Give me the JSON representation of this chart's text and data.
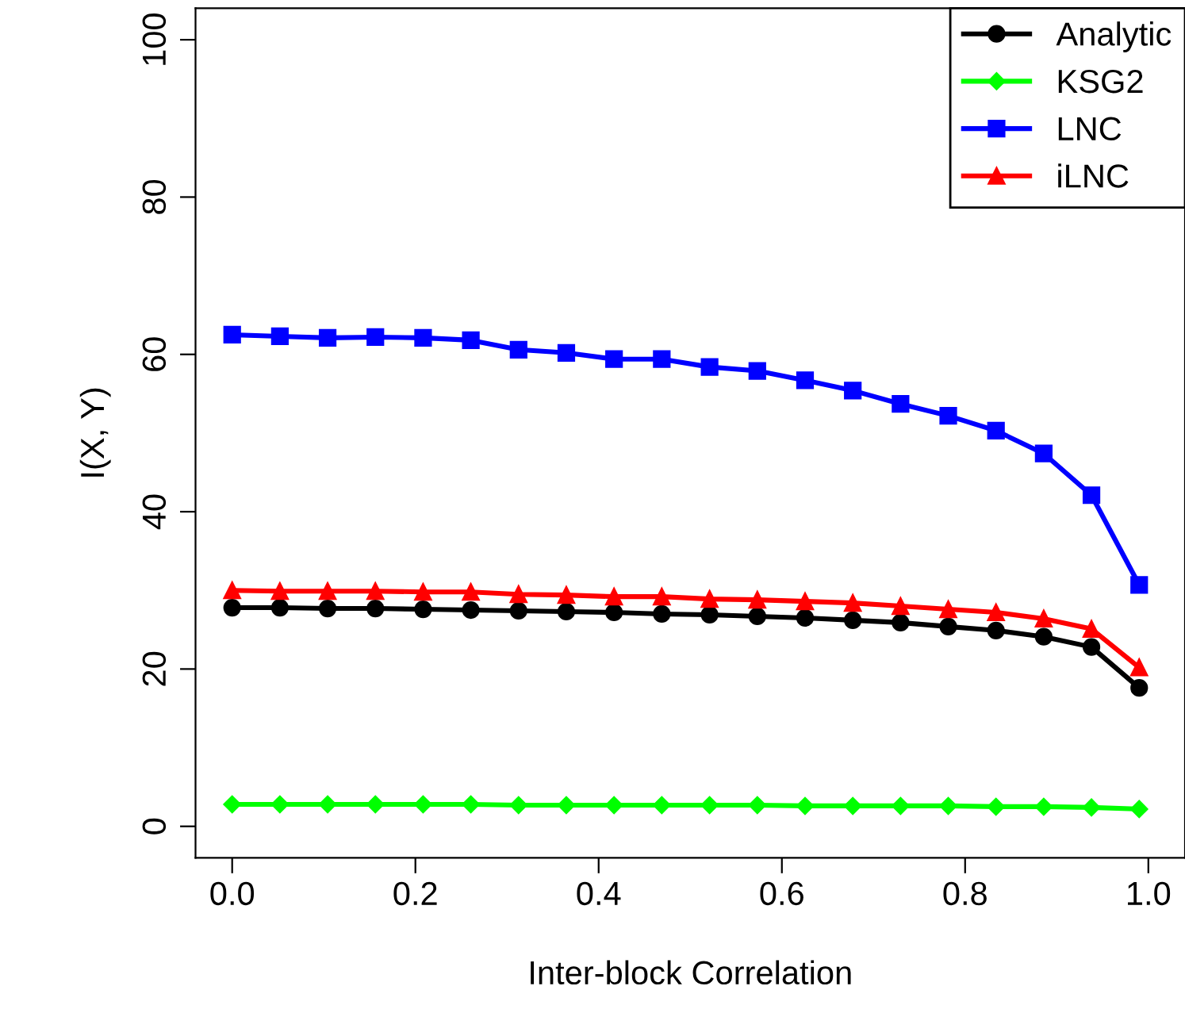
{
  "chart_data": {
    "type": "line",
    "xlabel": "Inter-block Correlation",
    "ylabel": "I(X, Y)",
    "x": [
      0,
      0.0521,
      0.1042,
      0.1563,
      0.2084,
      0.2605,
      0.3126,
      0.3647,
      0.4168,
      0.4689,
      0.5211,
      0.5732,
      0.6253,
      0.6774,
      0.7295,
      0.7816,
      0.8337,
      0.8858,
      0.9379,
      0.99
    ],
    "series": [
      {
        "name": "Analytic",
        "color": "#000000",
        "marker": "circle",
        "values": [
          27.8,
          27.8,
          27.7,
          27.7,
          27.6,
          27.5,
          27.4,
          27.3,
          27.2,
          27.0,
          26.9,
          26.7,
          26.5,
          26.2,
          25.9,
          25.4,
          24.9,
          24.1,
          22.8,
          17.6
        ]
      },
      {
        "name": "KSG2",
        "color": "#00ff00",
        "marker": "diamond",
        "values": [
          2.8,
          2.8,
          2.8,
          2.8,
          2.8,
          2.8,
          2.7,
          2.7,
          2.7,
          2.7,
          2.7,
          2.7,
          2.6,
          2.6,
          2.6,
          2.6,
          2.5,
          2.5,
          2.4,
          2.2
        ]
      },
      {
        "name": "LNC",
        "color": "#0000ff",
        "marker": "square",
        "values": [
          62.5,
          62.3,
          62.1,
          62.2,
          62.1,
          61.8,
          60.6,
          60.2,
          59.4,
          59.4,
          58.4,
          57.9,
          56.7,
          55.4,
          53.7,
          52.2,
          50.3,
          47.4,
          42.1,
          30.7
        ]
      },
      {
        "name": "iLNC",
        "color": "#ff0000",
        "marker": "triangle",
        "values": [
          30.0,
          29.9,
          29.9,
          29.9,
          29.8,
          29.8,
          29.5,
          29.4,
          29.2,
          29.2,
          28.9,
          28.8,
          28.6,
          28.4,
          28.0,
          27.6,
          27.2,
          26.4,
          25.1,
          20.2
        ]
      }
    ],
    "xlim": [
      -0.04,
      1.04
    ],
    "xticks": [
      {
        "value": 0,
        "label": "0.0"
      },
      {
        "value": 0.2,
        "label": "0.2"
      },
      {
        "value": 0.4,
        "label": "0.4"
      },
      {
        "value": 0.6,
        "label": "0.6"
      },
      {
        "value": 0.8,
        "label": "0.8"
      },
      {
        "value": 1,
        "label": "1.0"
      }
    ],
    "ylim": [
      -4,
      104
    ],
    "yticks": [
      0,
      20,
      40,
      60,
      80,
      100
    ],
    "grid": false,
    "legend": "top right"
  }
}
